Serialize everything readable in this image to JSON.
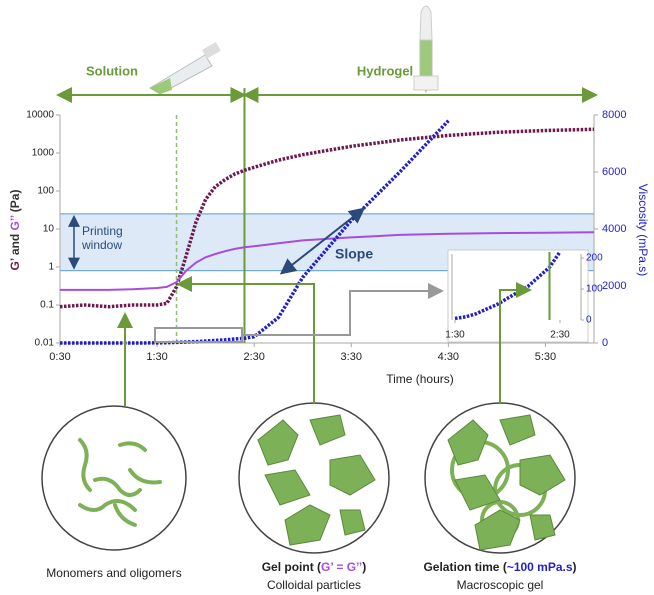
{
  "chart_data": {
    "type": "line",
    "x": [
      0.5,
      0.75,
      1.0,
      1.25,
      1.5,
      1.6,
      1.7,
      1.8,
      1.9,
      2.0,
      2.1,
      2.2,
      2.3,
      2.4,
      2.5,
      2.75,
      3.0,
      3.5,
      4.0,
      4.5,
      5.0,
      5.5,
      6.0
    ],
    "xlim": [
      0.5,
      6.0
    ],
    "xticks": [
      {
        "value": 0.5,
        "label": "0:30"
      },
      {
        "value": 1.5,
        "label": "1:30"
      },
      {
        "value": 2.5,
        "label": "2:30"
      },
      {
        "value": 3.5,
        "label": "3:30"
      },
      {
        "value": 4.5,
        "label": "4:30"
      },
      {
        "value": 5.5,
        "label": "5:30"
      }
    ],
    "x_label": "Time (hours)",
    "ylim": [
      0.01,
      10000
    ],
    "y_log": true,
    "yticks": [
      0.01,
      0.1,
      1,
      10,
      100,
      1000,
      10000
    ],
    "y_label": [
      "G’",
      " and ",
      "G’’",
      " (Pa)"
    ],
    "y2lim": [
      0,
      8000
    ],
    "y2ticks": [
      0,
      2000,
      4000,
      6000,
      8000
    ],
    "y2_label": "Viscosity (mPa.s)",
    "series": [
      {
        "color": "#6d1a4f",
        "values": [
          0.09,
          0.1,
          0.09,
          0.1,
          0.1,
          0.11,
          0.3,
          2,
          15,
          60,
          130,
          200,
          280,
          350,
          420,
          650,
          900,
          1500,
          2200,
          2900,
          3500,
          3900,
          4200
        ]
      },
      {
        "color": "#a64de0",
        "values": [
          0.25,
          0.25,
          0.25,
          0.26,
          0.28,
          0.3,
          0.4,
          0.8,
          1.3,
          1.8,
          2.2,
          2.6,
          3.0,
          3.3,
          3.5,
          4.2,
          5,
          6,
          7,
          7.5,
          7.8,
          8,
          8.2
        ]
      },
      {
        "color": "#1f1fd0",
        "axis": "y2",
        "values": [
          0,
          0,
          0,
          0,
          5,
          10,
          20,
          35,
          50,
          70,
          90,
          110,
          140,
          170,
          220,
          900,
          2300,
          4300,
          6000,
          7800,
          null,
          null,
          null
        ]
      }
    ],
    "printing_window": {
      "range": [
        0.8,
        25
      ],
      "label": [
        "Printing",
        "window"
      ],
      "color": "#dde9f6"
    },
    "slope_label": "Slope",
    "gel_point": 1.7,
    "gelation_time": 2.4,
    "phases": [
      "Solution",
      "Hydrogel"
    ],
    "inset": {
      "xlim": [
        1.5,
        2.7
      ],
      "xticks": [
        {
          "value": 1.5,
          "label": "1:30"
        },
        {
          "value": 2.5,
          "label": "2:30"
        }
      ],
      "ylim": [
        0,
        200
      ],
      "yticks": [
        0,
        100,
        200
      ]
    },
    "panels": [
      {
        "label": [
          "Monomers and oligomers"
        ]
      },
      {
        "label": [
          "Gel point (",
          "G’ = G’’",
          ")"
        ],
        "caption": "Colloidal particles"
      },
      {
        "label": [
          "Gelation time (",
          "~100 mPa.s",
          ")"
        ],
        "caption": "Macroscopic gel"
      }
    ]
  }
}
